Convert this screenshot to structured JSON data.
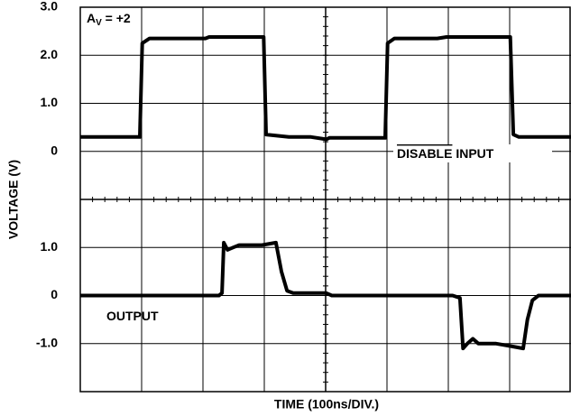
{
  "chart_data": {
    "type": "line",
    "annotation_parts": [
      "A",
      "V",
      " = +2"
    ],
    "y_label": "VOLTAGE (V)",
    "x_label": "TIME (100ns/DIV.)",
    "xlim": [
      0,
      800
    ],
    "xgrid": [
      100,
      200,
      300,
      400,
      500,
      600,
      700
    ],
    "color": "#000000",
    "panels": [
      {
        "ylim": [
          -1,
          3
        ],
        "yticks": [
          0,
          {
            "value": 1,
            "label": "1.0"
          },
          {
            "value": 2,
            "label": "2.0"
          },
          {
            "value": 3,
            "label": "3.0"
          }
        ],
        "ygrid": [
          0,
          1,
          2
        ],
        "series": [
          {
            "label_parts": [
              "DISABLE",
              " INPUT"
            ],
            "x": [
              0,
              97,
              101,
              113,
              204,
              210,
              299,
              303,
              340,
              376,
              401,
              406,
              497,
              501,
              512,
              582,
              597,
              701,
              706,
              715,
              800
            ],
            "values": [
              0.3,
              0.3,
              2.25,
              2.35,
              2.35,
              2.38,
              2.38,
              0.35,
              0.3,
              0.3,
              0.25,
              0.28,
              0.28,
              2.25,
              2.35,
              2.35,
              2.38,
              2.38,
              0.35,
              0.3,
              0.3
            ]
          }
        ]
      },
      {
        "ylim": [
          -2,
          2
        ],
        "yticks": [
          {
            "value": -1,
            "label": "-1.0"
          },
          0,
          {
            "value": 1,
            "label": "1.0"
          }
        ],
        "ygrid": [
          -1,
          0,
          1
        ],
        "series": [
          {
            "label_parts": [
              "OUTPUT"
            ],
            "x": [
              0,
              226,
              231,
              234,
              240,
              249,
              259,
              296,
              319,
              328,
              337,
              347,
              401,
              410,
              607,
              619,
              624,
              631,
              640,
              649,
              678,
              700,
              722,
              729,
              737,
              747,
              800
            ],
            "values": [
              0,
              0,
              0.05,
              1.1,
              0.95,
              1.0,
              1.05,
              1.05,
              1.1,
              0.5,
              0.1,
              0.05,
              0.05,
              0,
              0,
              -0.05,
              -1.1,
              -1.0,
              -0.9,
              -1.0,
              -1.0,
              -1.05,
              -1.1,
              -0.5,
              -0.1,
              0,
              0
            ]
          }
        ]
      }
    ]
  }
}
